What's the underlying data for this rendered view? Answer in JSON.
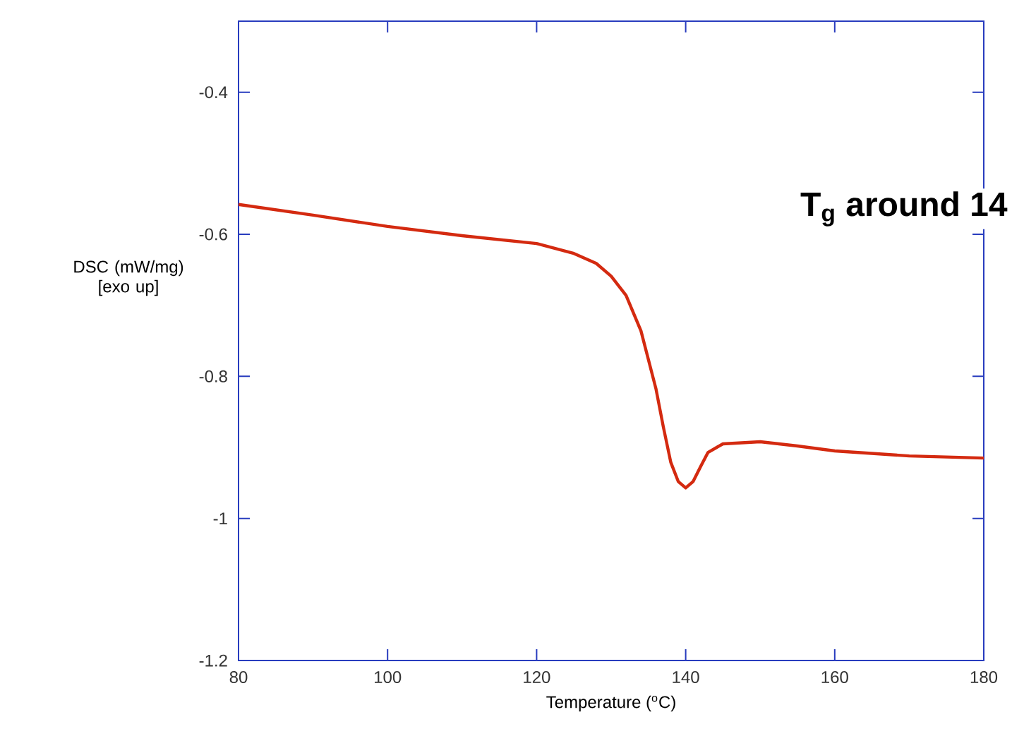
{
  "chart_data": {
    "type": "line",
    "xlabel": "Temperature ($^{o}$C)",
    "ylabel": "DSC  (mW/mg) [exo up]",
    "annotations": [
      "T$_{g}$ around 14"
    ],
    "xlim": [
      80,
      180
    ],
    "ylim": [
      -1.2,
      -0.3
    ],
    "xticks": [
      80,
      100,
      120,
      140,
      160,
      180
    ],
    "yticks": [
      -1.2,
      -1,
      -0.8,
      -0.6,
      -0.4
    ],
    "grid": false,
    "marker": "none",
    "line_style": "solid",
    "series": [
      {
        "color": "#d42a10",
        "x": [
          80,
          90,
          100,
          110,
          120,
          125,
          128,
          130,
          132,
          134,
          136,
          137,
          138,
          139,
          140,
          141,
          142,
          143,
          145,
          150,
          155,
          160,
          170,
          180
        ],
        "values": [
          -0.558,
          -0.573,
          -0.589,
          -0.602,
          -0.613,
          -0.627,
          -0.641,
          -0.659,
          -0.686,
          -0.736,
          -0.817,
          -0.871,
          -0.921,
          -0.948,
          -0.957,
          -0.948,
          -0.927,
          -0.907,
          -0.895,
          -0.892,
          -0.898,
          -0.905,
          -0.912,
          -0.915
        ]
      }
    ]
  }
}
